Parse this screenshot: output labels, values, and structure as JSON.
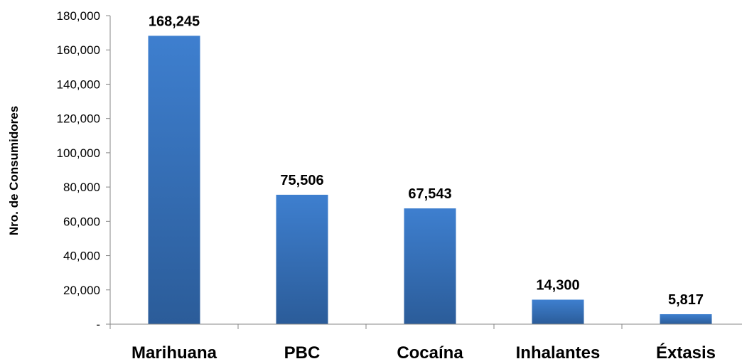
{
  "chart_data": {
    "type": "bar",
    "title": "",
    "xlabel": "",
    "ylabel": "Nro. de Consumidores",
    "categories": [
      "Marihuana",
      "PBC",
      "Cocaína",
      "Inhalantes",
      "Éxtasis"
    ],
    "values": [
      168245,
      75506,
      67543,
      14300,
      5817
    ],
    "data_labels": [
      "168,245",
      "75,506",
      "67,543",
      "14,300",
      "5,817"
    ],
    "ylim": [
      0,
      180000
    ],
    "yticks": [
      0,
      20000,
      40000,
      60000,
      80000,
      100000,
      120000,
      140000,
      160000,
      180000
    ],
    "ytick_labels": [
      "-",
      "20,000",
      "40,000",
      "60,000",
      "80,000",
      "100,000",
      "120,000",
      "140,000",
      "160,000",
      "180,000"
    ],
    "grid": false,
    "legend": "none",
    "bar_color_top": "#3e7fcf",
    "bar_color_bottom": "#2b5c99"
  }
}
